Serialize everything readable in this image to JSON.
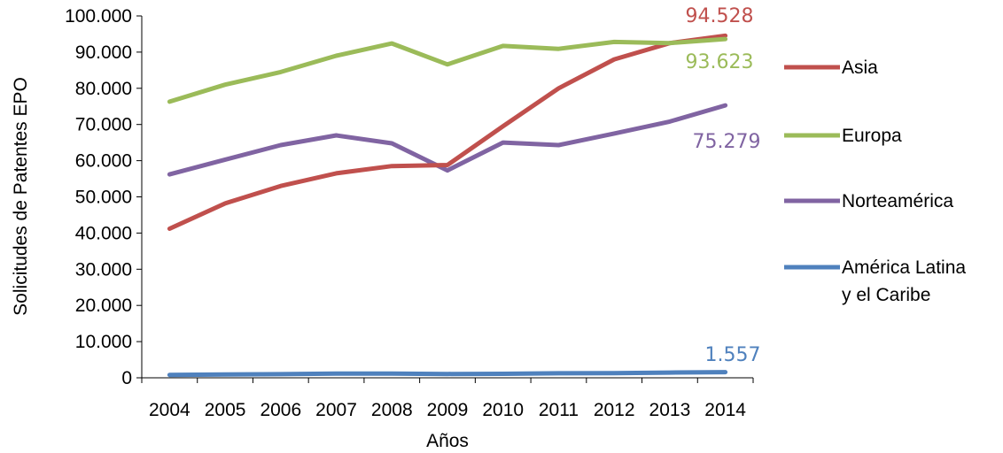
{
  "chart_data": {
    "type": "line",
    "xlabel": "Años",
    "ylabel": "Solicitudes de Patentes EPO",
    "x": [
      "2004",
      "2005",
      "2006",
      "2007",
      "2008",
      "2009",
      "2010",
      "2011",
      "2012",
      "2013",
      "2014"
    ],
    "ylim": [
      0,
      100000
    ],
    "yticks": [
      0,
      10000,
      20000,
      30000,
      40000,
      50000,
      60000,
      70000,
      80000,
      90000,
      100000
    ],
    "ytick_labels": [
      "0",
      "10.000",
      "20.000",
      "30.000",
      "40.000",
      "50.000",
      "60.000",
      "70.000",
      "80.000",
      "90.000",
      "100.000"
    ],
    "grid": false,
    "legend_position": "right",
    "series": [
      {
        "name": "Asia",
        "color": "#C0504D",
        "values": [
          41200,
          48200,
          53000,
          56500,
          58500,
          58800,
          69500,
          80000,
          88000,
          92500,
          94528
        ],
        "end_label": "94.528"
      },
      {
        "name": "Europa",
        "color": "#9BBB59",
        "values": [
          76300,
          81000,
          84500,
          89000,
          92400,
          86600,
          91700,
          90900,
          92800,
          92500,
          93623
        ],
        "end_label": "93.623"
      },
      {
        "name": "Norteamérica",
        "color": "#8064A2",
        "values": [
          56200,
          60300,
          64300,
          67000,
          64800,
          57300,
          65000,
          64300,
          67500,
          70800,
          75279
        ],
        "end_label": "75.279"
      },
      {
        "name": "América Latina y el Caribe",
        "name_lines": [
          "América Latina",
          "y el Caribe"
        ],
        "color": "#4F81BD",
        "values": [
          800,
          900,
          1000,
          1150,
          1150,
          1050,
          1100,
          1250,
          1300,
          1450,
          1557
        ],
        "end_label": "1.557"
      }
    ]
  }
}
